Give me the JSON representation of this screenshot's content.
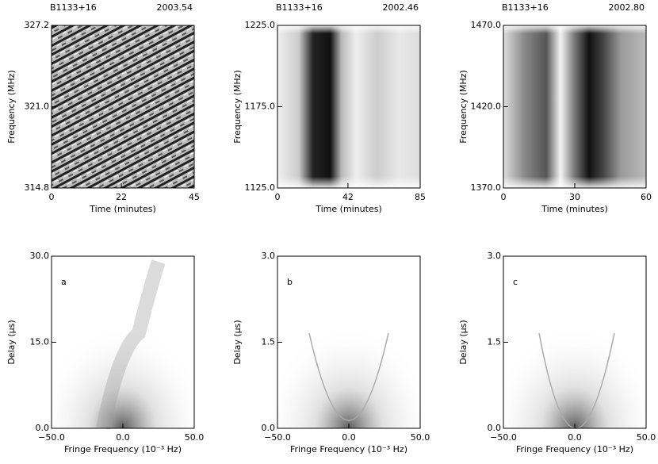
{
  "chart_data": [
    {
      "type": "image",
      "title": "B1133+16",
      "subtitle": "2003.54",
      "xlabel": "Time (minutes)",
      "ylabel": "Frequency (MHz)",
      "xlim": [
        0,
        45
      ],
      "ylim": [
        314.8,
        327.2
      ],
      "xticks": [
        0,
        22,
        45
      ],
      "yticks": [
        314.8,
        {
          "value": 321,
          "label": "321.0"
        },
        327.2
      ]
    },
    {
      "type": "image",
      "title": "B1133+16",
      "subtitle": "2002.46",
      "xlabel": "Time (minutes)",
      "ylabel": "Frequency (MHz)",
      "xlim": [
        0,
        85
      ],
      "ylim": [
        1125,
        1225
      ],
      "xticks": [
        0,
        42,
        85
      ],
      "yticks": [
        {
          "value": 1125,
          "label": "1125.0"
        },
        {
          "value": 1175,
          "label": "1175.0"
        },
        {
          "value": 1225,
          "label": "1225.0"
        }
      ]
    },
    {
      "type": "image",
      "title": "B1133+16",
      "subtitle": "2002.80",
      "xlabel": "Time (minutes)",
      "ylabel": "Frequency (MHz)",
      "xlim": [
        0,
        60
      ],
      "ylim": [
        1370,
        1470
      ],
      "xticks": [
        0,
        30,
        60
      ],
      "yticks": [
        {
          "value": 1370,
          "label": "1370.0"
        },
        {
          "value": 1420,
          "label": "1420.0"
        },
        {
          "value": 1470,
          "label": "1470.0"
        }
      ]
    },
    {
      "type": "image",
      "annotation": "a",
      "xlabel": "Fringe Frequency (10⁻³ Hz)",
      "ylabel": "Delay (μs)",
      "xlim": [
        -50,
        50
      ],
      "ylim": [
        0,
        30
      ],
      "xticks": [
        {
          "value": -50,
          "label": "−50.0"
        },
        {
          "value": 0,
          "label": "0.0"
        },
        {
          "value": 50,
          "label": "50.0"
        }
      ],
      "yticks": [
        {
          "value": 0,
          "label": "0.0"
        },
        {
          "value": 15,
          "label": "15.0"
        },
        {
          "value": 30,
          "label": "30.0"
        }
      ]
    },
    {
      "type": "image",
      "annotation": "b",
      "xlabel": "Fringe Frequency (10⁻³ Hz)",
      "ylabel": "Delay (μs)",
      "xlim": [
        -50,
        50
      ],
      "ylim": [
        0,
        3
      ],
      "xticks": [
        {
          "value": -50,
          "label": "−50.0"
        },
        {
          "value": 0,
          "label": "0.0"
        },
        {
          "value": 50,
          "label": "50.0"
        }
      ],
      "yticks": [
        {
          "value": 0,
          "label": "0.0"
        },
        1.5,
        {
          "value": 3,
          "label": "3.0"
        }
      ]
    },
    {
      "type": "image",
      "annotation": "c",
      "xlabel": "Fringe Frequency (10⁻³ Hz)",
      "ylabel": "Delay (μs)",
      "xlim": [
        -50,
        50
      ],
      "ylim": [
        0,
        3
      ],
      "xticks": [
        {
          "value": -50,
          "label": "−50.0"
        },
        {
          "value": 0,
          "label": "0.0"
        },
        {
          "value": 50,
          "label": "50.0"
        }
      ],
      "yticks": [
        {
          "value": 0,
          "label": "0.0"
        },
        1.5,
        {
          "value": 3,
          "label": "3.0"
        }
      ]
    }
  ]
}
